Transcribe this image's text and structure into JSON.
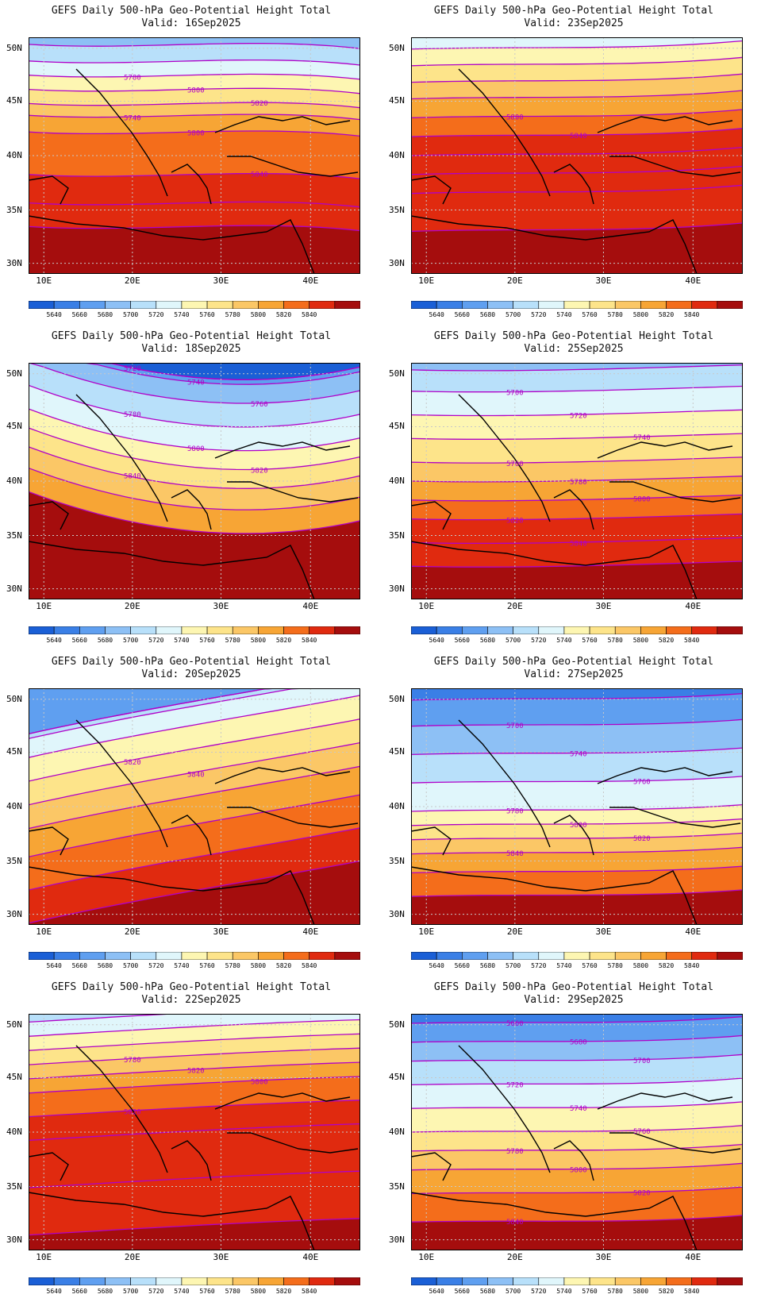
{
  "product_title": "GEFS Daily 500-hPa Geo-Potential Height Total",
  "valid_prefix": "Valid:",
  "lat_labels": [
    "50N",
    "45N",
    "40N",
    "35N",
    "30N"
  ],
  "lon_labels": [
    "10E",
    "20E",
    "30E",
    "40E"
  ],
  "colorbar": {
    "levels": [
      "5640",
      "5660",
      "5680",
      "5700",
      "5720",
      "5740",
      "5760",
      "5780",
      "5800",
      "5820",
      "5840"
    ],
    "colors": [
      "#1a5fd6",
      "#3a7fe6",
      "#5f9ff0",
      "#8dc0f5",
      "#b8e0fa",
      "#e0f6fb",
      "#fdf6b2",
      "#fde48a",
      "#fbc766",
      "#f7a535",
      "#f46d1b",
      "#e02a0f",
      "#a50d0d"
    ]
  },
  "contour_line_color": "#b000c8",
  "panels": [
    {
      "valid": "16Sep2025",
      "labels": [
        "5780",
        "5800",
        "5820",
        "5740",
        "5800",
        "5840"
      ]
    },
    {
      "valid": "23Sep2025",
      "labels": [
        "5800",
        "5840"
      ]
    },
    {
      "valid": "18Sep2025",
      "labels": [
        "5720",
        "5740",
        "5760",
        "5780",
        "5800",
        "5820",
        "5840"
      ]
    },
    {
      "valid": "25Sep2025",
      "labels": [
        "5700",
        "5720",
        "5740",
        "5760",
        "5780",
        "5800",
        "5820",
        "5840"
      ]
    },
    {
      "valid": "20Sep2025",
      "labels": [
        "5820",
        "5840"
      ]
    },
    {
      "valid": "27Sep2025",
      "labels": [
        "5700",
        "5740",
        "5760",
        "5780",
        "5800",
        "5820",
        "5840"
      ]
    },
    {
      "valid": "22Sep2025",
      "labels": [
        "5780",
        "5820",
        "5800",
        "5820"
      ]
    },
    {
      "valid": "29Sep2025",
      "labels": [
        "5660",
        "5680",
        "5700",
        "5720",
        "5740",
        "5760",
        "5780",
        "5800",
        "5820",
        "5840"
      ]
    }
  ]
}
